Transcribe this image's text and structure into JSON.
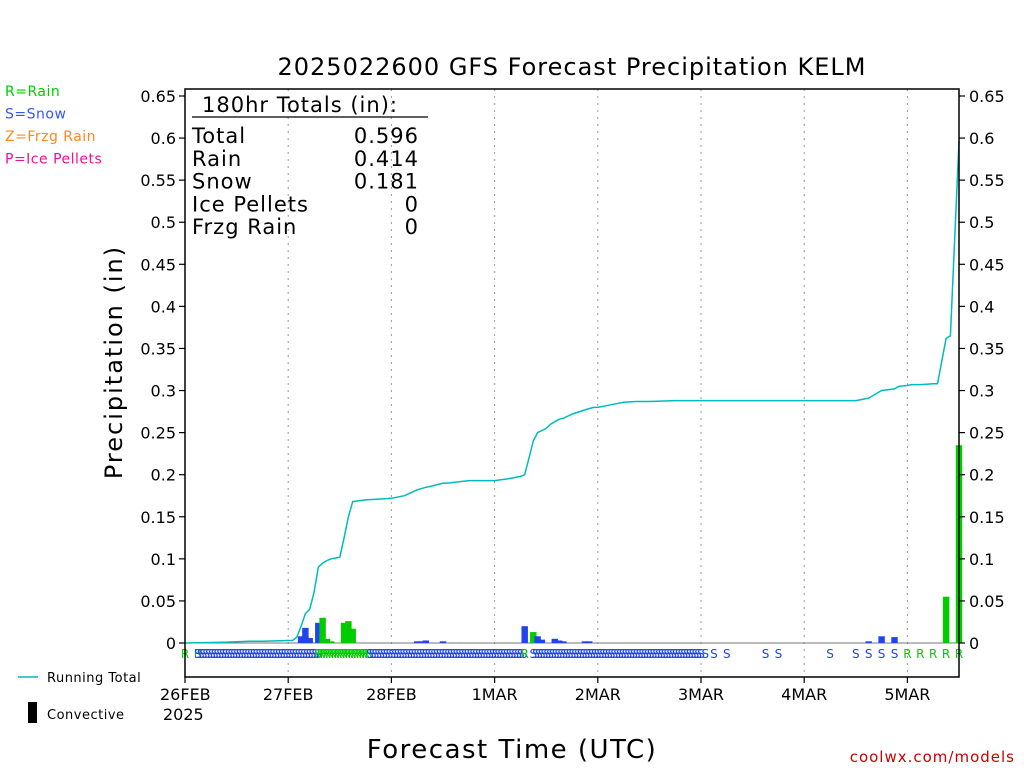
{
  "title": "2025022600 GFS Forecast Precipitation KELM",
  "ylabel": "Precipitation (in)",
  "xlabel": "Forecast Time (UTC)",
  "credit": "coolwx.com/models",
  "ptype_legend": [
    {
      "label": "R=Rain",
      "color": "#00cc00"
    },
    {
      "label": "S=Snow",
      "color": "#3355ff"
    },
    {
      "label": "Z=Frzg Rain",
      "color": "#ff8822"
    },
    {
      "label": "P=Ice Pellets",
      "color": "#ee1199"
    }
  ],
  "bottom_legend": {
    "running_total": {
      "label": "Running Total",
      "color": "#00bbbb"
    },
    "convective": {
      "label": "Convective",
      "color": "#000000"
    }
  },
  "totals": {
    "header": "180hr Totals (in):",
    "rows": [
      {
        "label": "Total",
        "value": "0.596"
      },
      {
        "label": "Rain",
        "value": "0.414"
      },
      {
        "label": "Snow",
        "value": "0.181"
      },
      {
        "label": "Ice Pellets",
        "value": "0"
      },
      {
        "label": "Frzg Rain",
        "value": "0"
      }
    ]
  },
  "chart_data": {
    "type": "bar",
    "title": "2025022600 GFS Forecast Precipitation KELM",
    "xlabel": "Forecast Time (UTC)",
    "ylabel": "Precipitation (in)",
    "x_unit": "forecast hour",
    "xlim": [
      0,
      180
    ],
    "ylim": [
      0,
      0.65
    ],
    "yticks": [
      0,
      0.05,
      0.1,
      0.15,
      0.2,
      0.25,
      0.3,
      0.35,
      0.4,
      0.45,
      0.5,
      0.55,
      0.6,
      0.65
    ],
    "ytick_labels": [
      "0",
      "0.05",
      "0.1",
      "0.15",
      "0.2",
      "0.25",
      "0.3",
      "0.35",
      "0.4",
      "0.45",
      "0.5",
      "0.55",
      "0.6",
      "0.65"
    ],
    "xticks": [
      {
        "hour": 0,
        "label": "26FEB",
        "sub": "2025"
      },
      {
        "hour": 24,
        "label": "27FEB"
      },
      {
        "hour": 48,
        "label": "28FEB"
      },
      {
        "hour": 72,
        "label": "1MAR"
      },
      {
        "hour": 96,
        "label": "2MAR"
      },
      {
        "hour": 120,
        "label": "3MAR"
      },
      {
        "hour": 144,
        "label": "4MAR"
      },
      {
        "hour": 168,
        "label": "5MAR"
      }
    ],
    "grid": "vertical dotted at day boundaries",
    "bars": [
      {
        "hour": 27,
        "value": 0.008,
        "type": "S"
      },
      {
        "hour": 28,
        "value": 0.018,
        "type": "S"
      },
      {
        "hour": 29,
        "value": 0.006,
        "type": "S"
      },
      {
        "hour": 31,
        "value": 0.024,
        "type": "S"
      },
      {
        "hour": 32,
        "value": 0.03,
        "type": "R"
      },
      {
        "hour": 33,
        "value": 0.005,
        "type": "R"
      },
      {
        "hour": 34,
        "value": 0.002,
        "type": "R"
      },
      {
        "hour": 37,
        "value": 0.024,
        "type": "R"
      },
      {
        "hour": 38,
        "value": 0.026,
        "type": "R"
      },
      {
        "hour": 39,
        "value": 0.017,
        "type": "R"
      },
      {
        "hour": 54,
        "value": 0.002,
        "type": "S"
      },
      {
        "hour": 55,
        "value": 0.002,
        "type": "S"
      },
      {
        "hour": 56,
        "value": 0.003,
        "type": "S"
      },
      {
        "hour": 60,
        "value": 0.002,
        "type": "S"
      },
      {
        "hour": 79,
        "value": 0.02,
        "type": "S"
      },
      {
        "hour": 81,
        "value": 0.013,
        "type": "R"
      },
      {
        "hour": 82,
        "value": 0.008,
        "type": "S"
      },
      {
        "hour": 83,
        "value": 0.004,
        "type": "S"
      },
      {
        "hour": 86,
        "value": 0.005,
        "type": "S"
      },
      {
        "hour": 87,
        "value": 0.003,
        "type": "S"
      },
      {
        "hour": 88,
        "value": 0.002,
        "type": "S"
      },
      {
        "hour": 93,
        "value": 0.002,
        "type": "S"
      },
      {
        "hour": 94,
        "value": 0.002,
        "type": "S"
      },
      {
        "hour": 159,
        "value": 0.002,
        "type": "S"
      },
      {
        "hour": 162,
        "value": 0.008,
        "type": "S"
      },
      {
        "hour": 165,
        "value": 0.007,
        "type": "S"
      },
      {
        "hour": 177,
        "value": 0.055,
        "type": "R"
      },
      {
        "hour": 180,
        "value": 0.235,
        "type": "R"
      }
    ],
    "running_total": {
      "hours": [
        0,
        9,
        15,
        18,
        24,
        25,
        26,
        27,
        28,
        29,
        30,
        31,
        32,
        33,
        34,
        36,
        37,
        38,
        39,
        42,
        45,
        48,
        51,
        54,
        56,
        57,
        60,
        61,
        66,
        69,
        72,
        75,
        76,
        78,
        79,
        80,
        81,
        82,
        84,
        85,
        86,
        87,
        88,
        90,
        93,
        95,
        96,
        99,
        102,
        105,
        108,
        114,
        120,
        156,
        158,
        159,
        162,
        165,
        166,
        168,
        169,
        171,
        174,
        175,
        177,
        178,
        180
      ],
      "values": [
        0,
        0.001,
        0.002,
        0.002,
        0.003,
        0.003,
        0.007,
        0.02,
        0.035,
        0.04,
        0.06,
        0.09,
        0.095,
        0.098,
        0.1,
        0.102,
        0.125,
        0.15,
        0.168,
        0.17,
        0.171,
        0.172,
        0.175,
        0.182,
        0.185,
        0.186,
        0.19,
        0.19,
        0.193,
        0.193,
        0.193,
        0.195,
        0.196,
        0.198,
        0.2,
        0.22,
        0.24,
        0.25,
        0.255,
        0.26,
        0.263,
        0.266,
        0.267,
        0.272,
        0.277,
        0.28,
        0.28,
        0.283,
        0.286,
        0.287,
        0.287,
        0.288,
        0.288,
        0.288,
        0.29,
        0.291,
        0.3,
        0.302,
        0.305,
        0.306,
        0.307,
        0.307,
        0.308,
        0.308,
        0.362,
        0.365,
        0.596
      ]
    },
    "ptype_row": [
      {
        "from": 0,
        "to": 3,
        "type": "R"
      },
      {
        "from": 3,
        "to": 31,
        "type": "S"
      },
      {
        "from": 31,
        "to": 43,
        "type": "R"
      },
      {
        "from": 43,
        "to": 79,
        "type": "S"
      },
      {
        "from": 79,
        "to": 81,
        "type": "R"
      },
      {
        "from": 81,
        "to": 120,
        "type": "S"
      },
      {
        "from": 121,
        "to": 121,
        "type": "S"
      },
      {
        "from": 123,
        "to": 123,
        "type": "S"
      },
      {
        "from": 126,
        "to": 126,
        "type": "S"
      },
      {
        "from": 135,
        "to": 135,
        "type": "S"
      },
      {
        "from": 138,
        "to": 138,
        "type": "S"
      },
      {
        "from": 150,
        "to": 150,
        "type": "S"
      },
      {
        "from": 156,
        "to": 156,
        "type": "S"
      },
      {
        "from": 159,
        "to": 159,
        "type": "S"
      },
      {
        "from": 162,
        "to": 162,
        "type": "S"
      },
      {
        "from": 165,
        "to": 165,
        "type": "S"
      },
      {
        "from": 168,
        "to": 168,
        "type": "R"
      },
      {
        "from": 171,
        "to": 171,
        "type": "R"
      },
      {
        "from": 174,
        "to": 174,
        "type": "R"
      },
      {
        "from": 177,
        "to": 177,
        "type": "R"
      },
      {
        "from": 180,
        "to": 180,
        "type": "R"
      }
    ]
  }
}
